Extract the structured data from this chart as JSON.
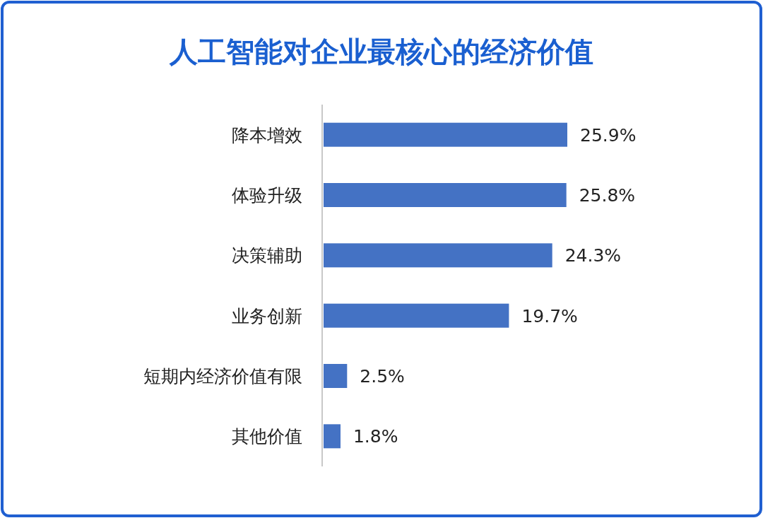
{
  "chart_data": {
    "type": "bar",
    "orientation": "horizontal",
    "title": "人工智能对企业最核心的经济价值",
    "categories": [
      "降本增效",
      "体验升级",
      "决策辅助",
      "业务创新",
      "短期内经济价值有限",
      "其他价值"
    ],
    "values": [
      25.9,
      25.8,
      24.3,
      19.7,
      2.5,
      1.8
    ],
    "value_labels": [
      "25.9%",
      "25.8%",
      "24.3%",
      "19.7%",
      "2.5%",
      "1.8%"
    ],
    "color": "#4472c4"
  }
}
